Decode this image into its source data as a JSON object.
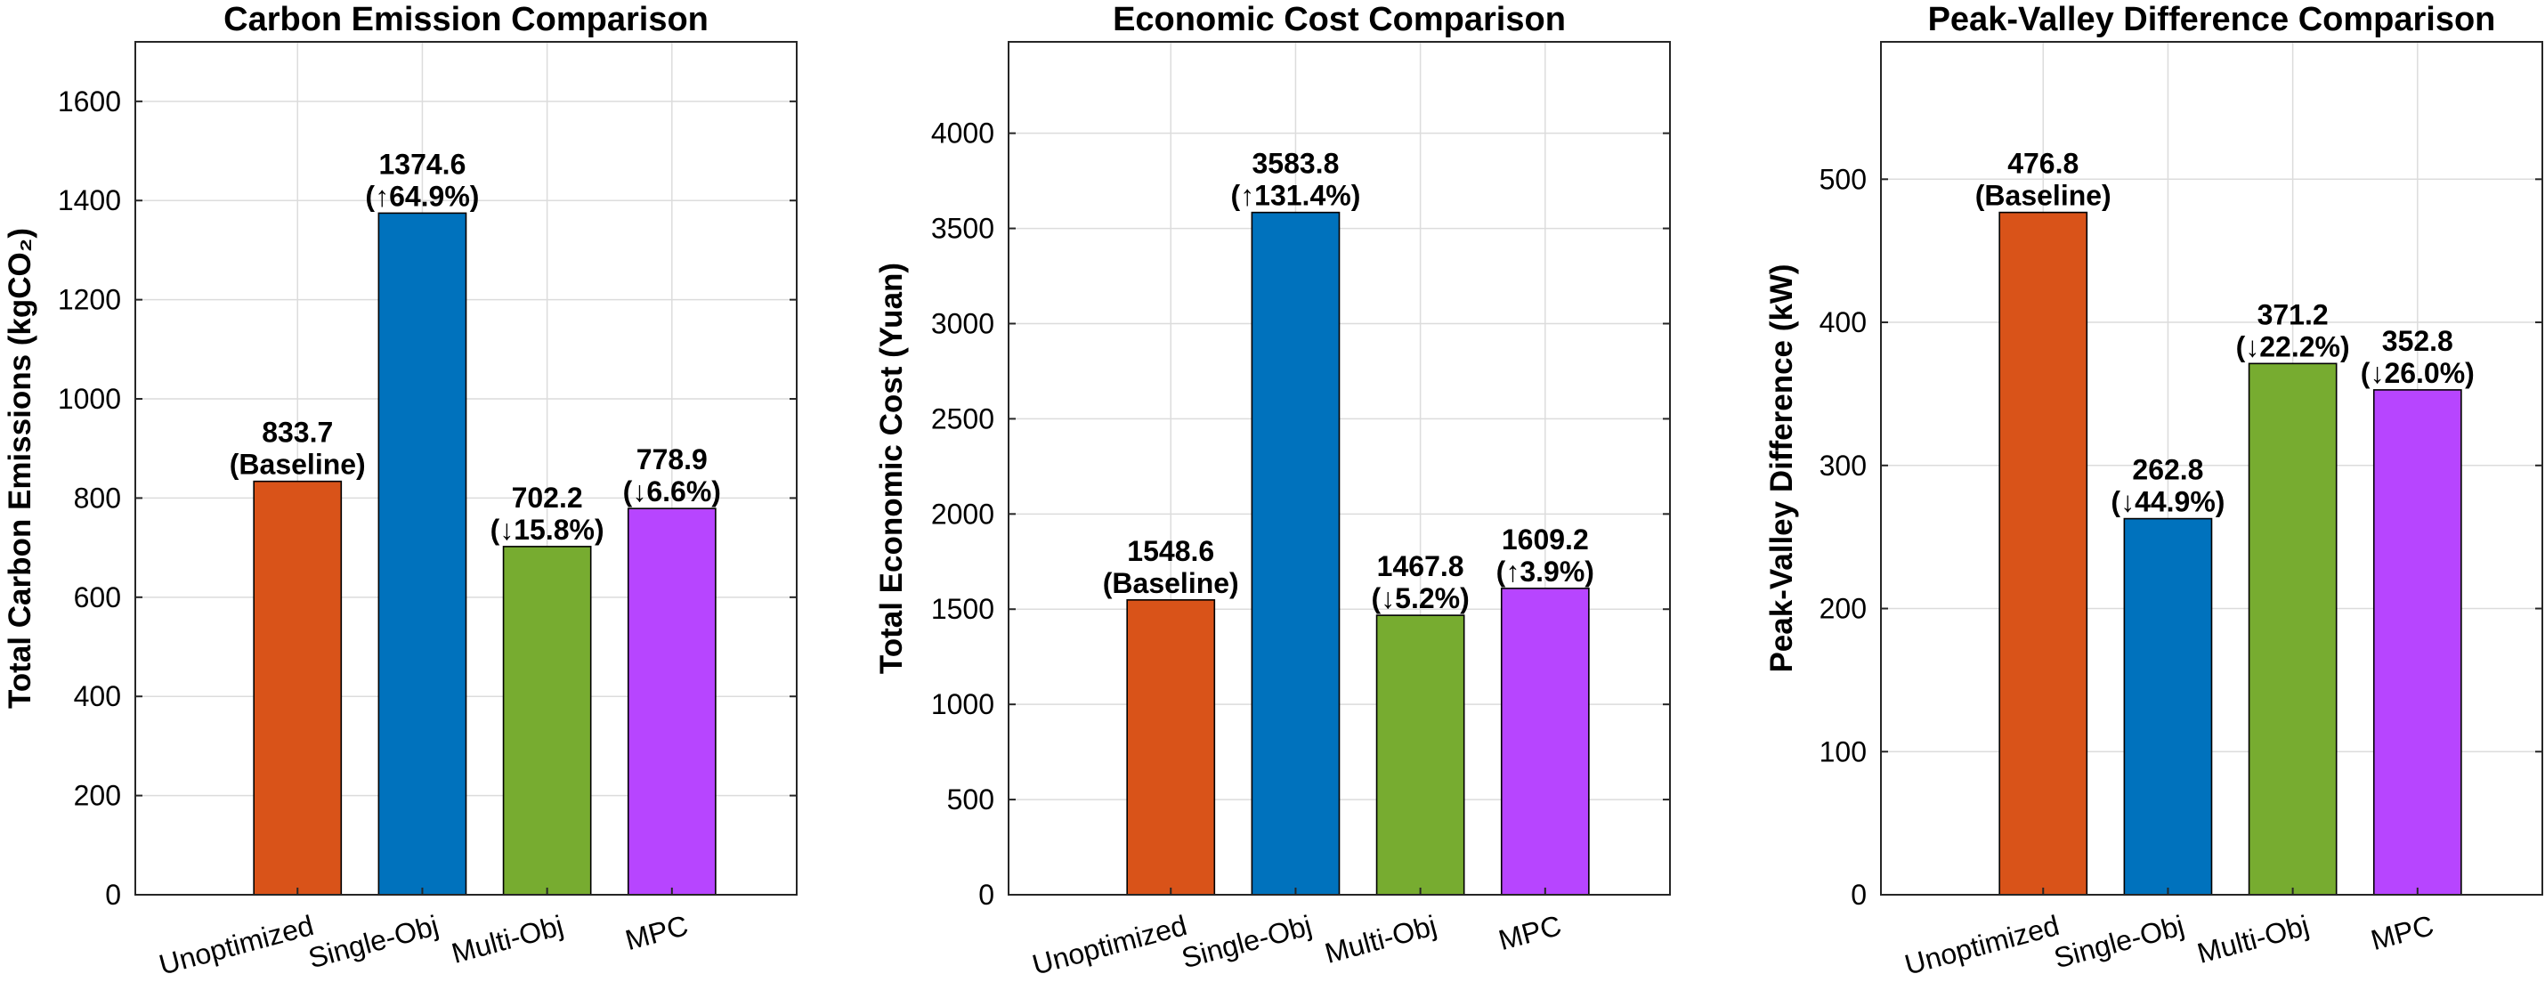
{
  "chart_data": [
    {
      "type": "bar",
      "title": "Carbon Emission Comparison",
      "xlabel": "",
      "ylabel": "Total Carbon Emissions (kgCO₂)",
      "categories": [
        "Unoptimized",
        "Single-Obj",
        "Multi-Obj",
        "MPC"
      ],
      "values": [
        833.7,
        1374.6,
        702.2,
        778.9
      ],
      "value_labels": [
        "833.7",
        "1374.6",
        "702.2",
        "778.9"
      ],
      "change_labels": [
        "(Baseline)",
        "(↑64.9%)",
        "(↓15.8%)",
        "(↓6.6%)"
      ],
      "colors": [
        "#D95319",
        "#0072BD",
        "#77AC30",
        "#B745FF"
      ],
      "ylim": [
        0,
        1720
      ],
      "yticks": [
        0,
        200,
        400,
        600,
        800,
        1000,
        1200,
        1400,
        1600
      ],
      "grid": true
    },
    {
      "type": "bar",
      "title": "Economic Cost Comparison",
      "xlabel": "",
      "ylabel": "Total Economic Cost (Yuan)",
      "categories": [
        "Unoptimized",
        "Single-Obj",
        "Multi-Obj",
        "MPC"
      ],
      "values": [
        1548.6,
        3583.8,
        1467.8,
        1609.2
      ],
      "value_labels": [
        "1548.6",
        "3583.8",
        "1467.8",
        "1609.2"
      ],
      "change_labels": [
        "(Baseline)",
        "(↑131.4%)",
        "(↓5.2%)",
        "(↑3.9%)"
      ],
      "colors": [
        "#D95319",
        "#0072BD",
        "#77AC30",
        "#B745FF"
      ],
      "ylim": [
        0,
        4480
      ],
      "yticks": [
        0,
        500,
        1000,
        1500,
        2000,
        2500,
        3000,
        3500,
        4000
      ],
      "grid": true
    },
    {
      "type": "bar",
      "title": "Peak-Valley Difference Comparison",
      "xlabel": "",
      "ylabel": "Peak-Valley Difference (kW)",
      "categories": [
        "Unoptimized",
        "Single-Obj",
        "Multi-Obj",
        "MPC"
      ],
      "values": [
        476.8,
        262.8,
        371.2,
        352.8
      ],
      "value_labels": [
        "476.8",
        "262.8",
        "371.2",
        "352.8"
      ],
      "change_labels": [
        "(Baseline)",
        "(↓44.9%)",
        "(↓22.2%)",
        "(↓26.0%)"
      ],
      "colors": [
        "#D95319",
        "#0072BD",
        "#77AC30",
        "#B745FF"
      ],
      "ylim": [
        0,
        596
      ],
      "yticks": [
        0,
        100,
        200,
        300,
        400,
        500
      ],
      "grid": true
    }
  ]
}
